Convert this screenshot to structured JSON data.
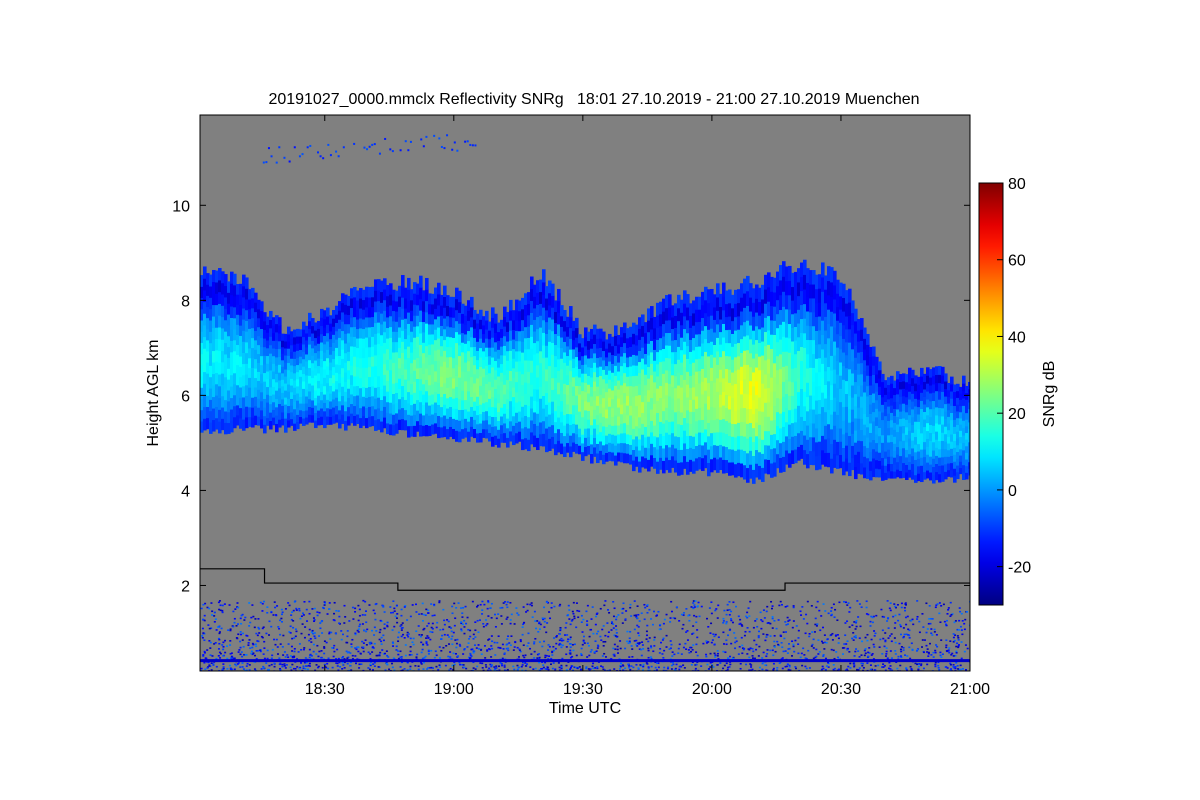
{
  "chart_data": {
    "type": "heatmap",
    "title": "20191027_0000.mmclx Reflectivity SNRg   18:01 27.10.2019 - 21:00 27.10.2019 Muenchen",
    "xlabel": "Time UTC",
    "ylabel": "Height AGL km",
    "x_start_label": "18:01",
    "x_end_label": "21:00",
    "x_ticks": [
      "18:30",
      "19:00",
      "19:30",
      "20:00",
      "20:30",
      "21:00"
    ],
    "y_ticks": [
      2,
      4,
      6,
      8,
      10
    ],
    "ylim": [
      0.2,
      11.9
    ],
    "background_color": "#808080",
    "colorbar": {
      "label": "SNRg dB",
      "range": [
        -30,
        80
      ],
      "ticks": [
        -20,
        0,
        20,
        40,
        60,
        80
      ],
      "colormap": "jet"
    },
    "cloud_layer": [
      {
        "x": "18:01",
        "base": 5.2,
        "top": 8.6,
        "snr": 10
      },
      {
        "x": "18:10",
        "base": 5.3,
        "top": 8.5,
        "snr": 8
      },
      {
        "x": "18:20",
        "base": 5.3,
        "top": 7.4,
        "snr": 5
      },
      {
        "x": "18:30",
        "base": 5.4,
        "top": 7.8,
        "snr": 12
      },
      {
        "x": "18:40",
        "base": 5.3,
        "top": 8.3,
        "snr": 14
      },
      {
        "x": "18:50",
        "base": 5.2,
        "top": 8.4,
        "snr": 20
      },
      {
        "x": "19:00",
        "base": 5.1,
        "top": 8.2,
        "snr": 25
      },
      {
        "x": "19:10",
        "base": 5.0,
        "top": 7.6,
        "snr": 20
      },
      {
        "x": "19:20",
        "base": 4.9,
        "top": 8.6,
        "snr": 15
      },
      {
        "x": "19:30",
        "base": 4.7,
        "top": 7.3,
        "snr": 25
      },
      {
        "x": "19:40",
        "base": 4.5,
        "top": 7.4,
        "snr": 28
      },
      {
        "x": "19:50",
        "base": 4.4,
        "top": 8.0,
        "snr": 25
      },
      {
        "x": "20:00",
        "base": 4.4,
        "top": 8.2,
        "snr": 30
      },
      {
        "x": "20:10",
        "base": 4.2,
        "top": 8.4,
        "snr": 38
      },
      {
        "x": "20:20",
        "base": 4.6,
        "top": 8.8,
        "snr": 15
      },
      {
        "x": "20:30",
        "base": 4.4,
        "top": 8.5,
        "snr": 5
      },
      {
        "x": "20:40",
        "base": 4.2,
        "top": 6.3,
        "snr": 0
      },
      {
        "x": "20:50",
        "base": 4.2,
        "top": 6.5,
        "snr": 8
      },
      {
        "x": "21:00",
        "base": 4.3,
        "top": 6.3,
        "snr": 3
      }
    ],
    "boundary_line": [
      {
        "x": "18:01",
        "height": 2.35
      },
      {
        "x": "18:16",
        "height": 2.35
      },
      {
        "x": "18:16",
        "height": 2.05
      },
      {
        "x": "18:47",
        "height": 2.05
      },
      {
        "x": "18:47",
        "height": 1.9
      },
      {
        "x": "20:17",
        "height": 1.9
      },
      {
        "x": "20:17",
        "height": 2.05
      },
      {
        "x": "21:00",
        "height": 2.05
      }
    ],
    "upper_cirrus": {
      "x_from": "18:15",
      "x_to": "19:05",
      "height": 11.0,
      "snr": -15
    }
  }
}
